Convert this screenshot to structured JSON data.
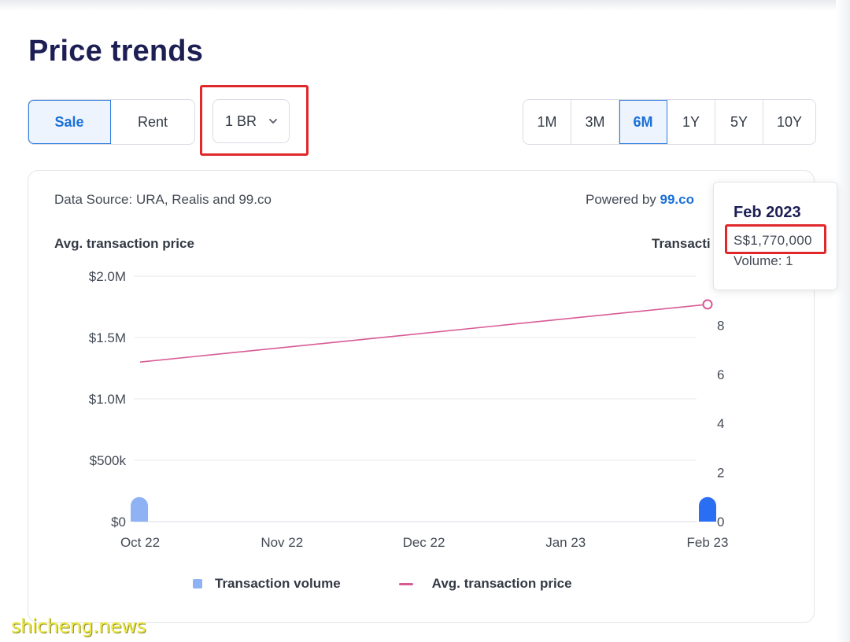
{
  "page": {
    "title": "Price trends"
  },
  "tabs": {
    "sale": "Sale",
    "rent": "Rent",
    "bedroom_select": "1 BR",
    "periods": [
      "1M",
      "3M",
      "6M",
      "1Y",
      "5Y",
      "10Y"
    ],
    "active_period": "6M"
  },
  "card": {
    "data_source": "Data Source: URA, Realis and 99.co",
    "powered_prefix": "Powered by ",
    "powered_brand": "99.co",
    "legend": {
      "volume": "Transaction volume",
      "price": "Avg. transaction price"
    }
  },
  "tooltip": {
    "date": "Feb 2023",
    "price": "S$1,770,000",
    "volume": "Volume: 1"
  },
  "colors": {
    "accent": "#1a70d8",
    "title": "#1c1e54",
    "price_line": "#d85a95",
    "volume_bar": "#8fb2f5",
    "volume_bar_active": "#2a6ff3",
    "highlight": "#e0282b"
  },
  "watermark": "shicheng.news",
  "chart_data": {
    "type": "bar",
    "x": [
      "Oct 22",
      "Nov 22",
      "Dec 22",
      "Jan 23",
      "Feb 23"
    ],
    "y_left_label": "Avg. transaction price",
    "y_right_label": "Transacti",
    "y_left_ticks": [
      "$0",
      "$500k",
      "$1.0M",
      "$1.5M",
      "$2.0M"
    ],
    "y_left_values": [
      0,
      500000,
      1000000,
      1500000,
      2000000
    ],
    "y_right_ticks": [
      "0",
      "2",
      "4",
      "6",
      "8"
    ],
    "y_right_values": [
      0,
      2,
      4,
      6,
      8
    ],
    "ylim_left": [
      0,
      2000000
    ],
    "ylim_right": [
      0,
      10
    ],
    "grid": true,
    "series": [
      {
        "name": "Transaction volume",
        "type": "bar",
        "axis": "right",
        "values": [
          1,
          0,
          0,
          0,
          1
        ]
      },
      {
        "name": "Avg. transaction price",
        "type": "line",
        "axis": "left",
        "values": [
          1300000,
          null,
          null,
          null,
          1770000
        ]
      }
    ]
  }
}
